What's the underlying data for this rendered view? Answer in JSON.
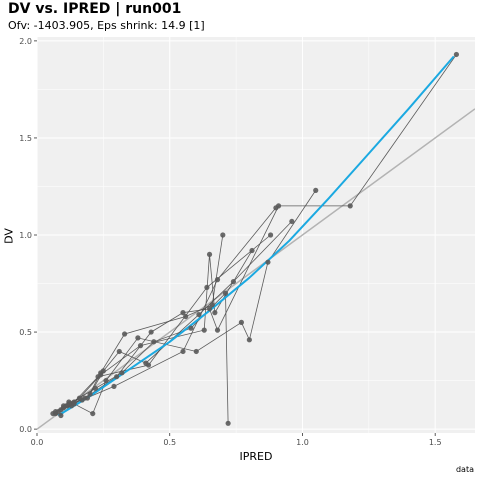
{
  "chart_data": {
    "type": "scatter",
    "title": "DV vs. IPRED | run001",
    "subtitle": "Ofv: -1403.905, Eps shrink: 14.9 [1]",
    "xlabel": "IPRED",
    "ylabel": "DV",
    "caption": "data",
    "xlim": [
      0.0,
      1.65
    ],
    "ylim": [
      -0.02,
      2.02
    ],
    "x_ticks": [
      0.0,
      0.5,
      1.0,
      1.5
    ],
    "x_tick_labels": [
      "0.0",
      "0.5",
      "1.0",
      "1.5"
    ],
    "y_ticks": [
      0.0,
      0.5,
      1.0,
      1.5,
      2.0
    ],
    "y_tick_labels": [
      "0.0",
      "0.5",
      "1.0",
      "1.5",
      "2.0"
    ],
    "grid": true,
    "legend": "none",
    "colors": {
      "panel": "#f0f0f0",
      "grid": "#ffffff",
      "points": "#5a5a5a",
      "connect_lines": "#4a4a4a",
      "identity_line": "#b3b3b3",
      "smooth_line": "#1ba9e1"
    },
    "identity_line": {
      "slope": 1,
      "intercept": 0
    },
    "smooth_line": [
      [
        0.08,
        0.07
      ],
      [
        0.2,
        0.17
      ],
      [
        0.35,
        0.31
      ],
      [
        0.5,
        0.45
      ],
      [
        0.65,
        0.61
      ],
      [
        0.8,
        0.78
      ],
      [
        0.95,
        0.97
      ],
      [
        1.1,
        1.19
      ],
      [
        1.25,
        1.42
      ],
      [
        1.4,
        1.65
      ],
      [
        1.57,
        1.92
      ]
    ],
    "subjects": [
      {
        "points": [
          [
            0.06,
            0.08
          ],
          [
            0.09,
            0.07
          ],
          [
            0.14,
            0.14
          ],
          [
            0.23,
            0.27
          ],
          [
            0.42,
            0.33
          ],
          [
            0.64,
            0.73
          ],
          [
            0.88,
            1.0
          ]
        ]
      },
      {
        "points": [
          [
            0.07,
            0.08
          ],
          [
            0.1,
            0.12
          ],
          [
            0.17,
            0.15
          ],
          [
            0.29,
            0.22
          ],
          [
            0.55,
            0.4
          ],
          [
            0.68,
            0.77
          ],
          [
            0.9,
            1.14
          ]
        ]
      },
      {
        "points": [
          [
            0.08,
            0.09
          ],
          [
            0.12,
            0.14
          ],
          [
            0.19,
            0.16
          ],
          [
            0.24,
            0.29
          ],
          [
            0.33,
            0.49
          ],
          [
            0.56,
            0.58
          ],
          [
            0.66,
            0.64
          ],
          [
            0.7,
            1.0
          ]
        ]
      },
      {
        "points": [
          [
            0.09,
            0.1
          ],
          [
            0.13,
            0.12
          ],
          [
            0.2,
            0.18
          ],
          [
            0.25,
            0.3
          ],
          [
            0.31,
            0.4
          ],
          [
            0.41,
            0.34
          ],
          [
            0.61,
            0.59
          ],
          [
            0.74,
            0.76
          ],
          [
            0.96,
            1.07
          ]
        ]
      },
      {
        "points": [
          [
            0.1,
            0.11
          ],
          [
            0.14,
            0.13
          ],
          [
            0.21,
            0.08
          ],
          [
            0.26,
            0.25
          ],
          [
            0.38,
            0.47
          ],
          [
            0.6,
            0.4
          ],
          [
            0.77,
            0.55
          ],
          [
            0.8,
            0.46
          ],
          [
            0.87,
            0.86
          ],
          [
            1.05,
            1.23
          ]
        ]
      },
      {
        "points": [
          [
            0.11,
            0.12
          ],
          [
            0.16,
            0.16
          ],
          [
            0.24,
            0.28
          ],
          [
            0.39,
            0.43
          ],
          [
            0.63,
            0.51
          ],
          [
            0.65,
            0.9
          ],
          [
            0.67,
            0.6
          ],
          [
            0.81,
            0.92
          ]
        ]
      },
      {
        "points": [
          [
            0.07,
            0.09
          ],
          [
            0.18,
            0.16
          ],
          [
            0.3,
            0.27
          ],
          [
            0.43,
            0.5
          ],
          [
            0.55,
            0.6
          ],
          [
            0.65,
            0.62
          ],
          [
            0.68,
            0.51
          ],
          [
            0.91,
            1.15
          ],
          [
            1.18,
            1.15
          ],
          [
            1.58,
            1.93
          ]
        ]
      },
      {
        "points": [
          [
            0.12,
            0.13
          ],
          [
            0.22,
            0.21
          ],
          [
            0.32,
            0.29
          ],
          [
            0.44,
            0.45
          ],
          [
            0.58,
            0.52
          ],
          [
            0.71,
            0.7
          ],
          [
            0.72,
            0.03
          ]
        ]
      }
    ]
  }
}
